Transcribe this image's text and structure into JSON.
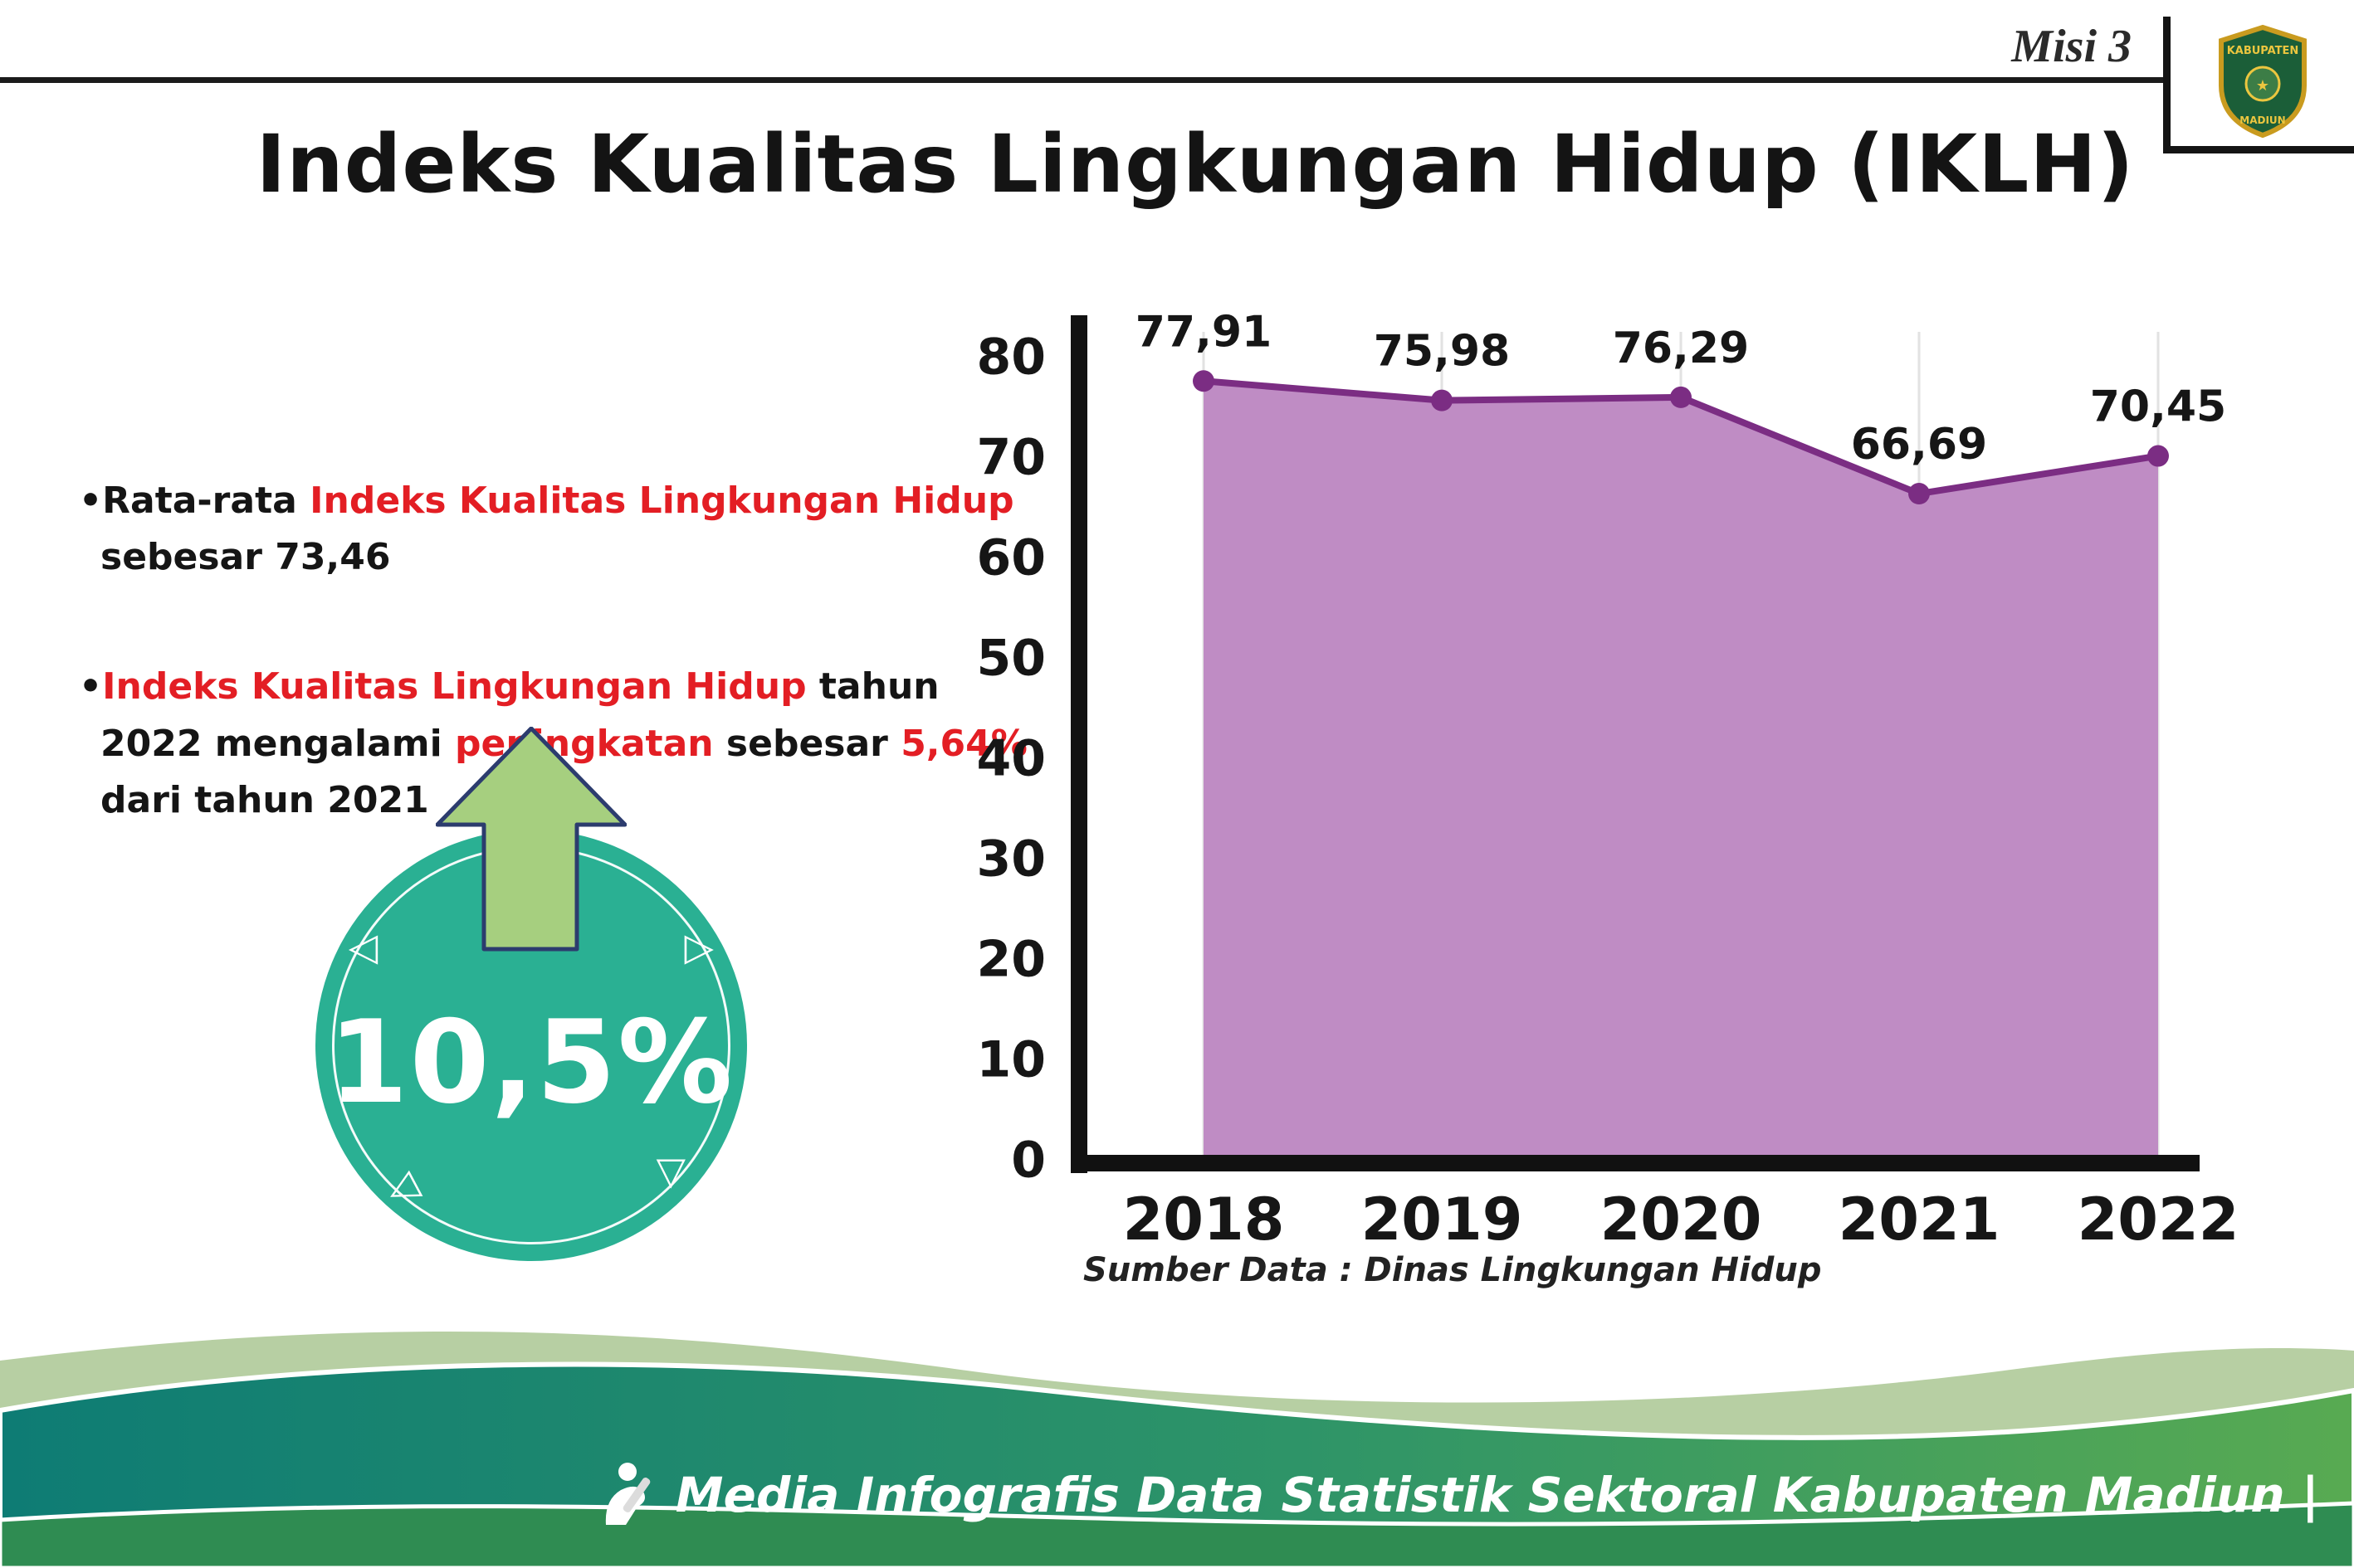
{
  "header": {
    "misi_label": "Misi 3",
    "title": "Indeks Kualitas Lingkungan Hidup (IKLH)",
    "logo_line1": "KABUPATEN",
    "logo_line2": "MADIUN"
  },
  "bullets": [
    {
      "segments": [
        {
          "text": "•Rata-rata ",
          "red": false
        },
        {
          "text": "Indeks Kualitas Lingkungan Hidup",
          "red": true
        },
        {
          "text": " sebesar 73,46",
          "red": false
        }
      ]
    },
    {
      "segments": [
        {
          "text": "•",
          "red": false
        },
        {
          "text": "Indeks Kualitas Lingkungan Hidup",
          "red": true
        },
        {
          "text": " tahun 2022 mengalami ",
          "red": false
        },
        {
          "text": "peningkatan",
          "red": true
        },
        {
          "text": " sebesar ",
          "red": false
        },
        {
          "text": "5,64%",
          "red": true
        },
        {
          "text": " dari tahun 2021",
          "red": false
        }
      ]
    }
  ],
  "badge": {
    "value": "10,5%",
    "circle_color": "#2ab093",
    "arrow_color": "#a6cf7f",
    "arrow_outline": "#2c3c6e"
  },
  "chart_data": {
    "type": "area",
    "title": "",
    "categories": [
      "2018",
      "2019",
      "2020",
      "2021",
      "2022"
    ],
    "values": [
      77.91,
      75.98,
      76.29,
      66.69,
      70.45
    ],
    "value_labels": [
      "77,91",
      "75,98",
      "76,29",
      "66,69",
      "70,45"
    ],
    "ylim": [
      0,
      80
    ],
    "ytick_step": 10,
    "ytick_labels": [
      "0",
      "10",
      "20",
      "30",
      "40",
      "50",
      "60",
      "70",
      "80"
    ],
    "grid": true,
    "area_color": "#bf8cc4",
    "line_color": "#7b2d83",
    "point_color": "#7b2d83",
    "axis_color": "#111111",
    "source": "Sumber Data : Dinas Lingkungan Hidup"
  },
  "footer": {
    "credit": "Media Infografis Data Statistik Sektoral Kabupaten Madiun |"
  },
  "colors": {
    "accent_red": "#e31e24",
    "footer_sage": "#b7cfa3",
    "footer_grad_start": "#0e7c74",
    "footer_grad_mid": "#2e9468",
    "footer_grad_end": "#58aa52",
    "footer_band": "#2f8c52"
  }
}
